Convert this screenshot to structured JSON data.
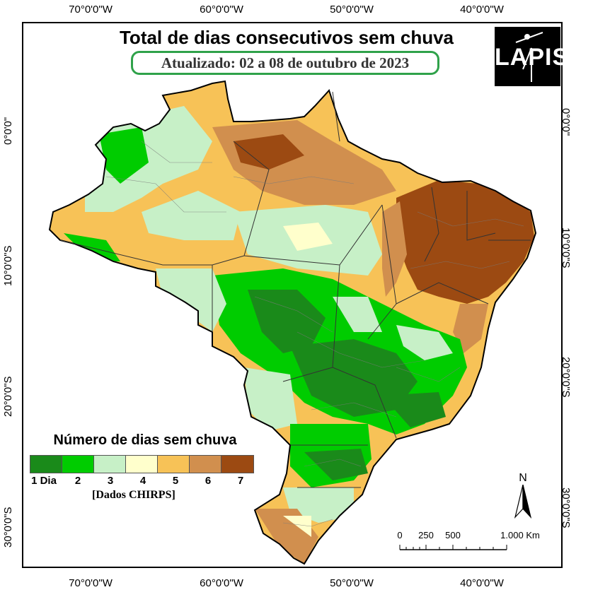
{
  "title": "Total de dias consecutivos sem chuva",
  "subtitle": "Atualizado: 02 a 08 de outubro de 2023",
  "logo": {
    "text": "LAPIS"
  },
  "axes": {
    "longitude_labels": [
      "70°0'0\"W",
      "60°0'0\"W",
      "50°0'0\"W",
      "40°0'0\"W"
    ],
    "latitude_labels": [
      "0°0'0\"",
      "10°0'0\"S",
      "20°0'0\"S",
      "30°0'0\"S"
    ]
  },
  "legend": {
    "title": "Número de dias sem chuva",
    "classes": [
      {
        "label": "1 Dia",
        "color": "#1a8a1a"
      },
      {
        "label": "2",
        "color": "#00cc00"
      },
      {
        "label": "3",
        "color": "#c7f0c7"
      },
      {
        "label": "4",
        "color": "#ffffcc"
      },
      {
        "label": "5",
        "color": "#f7c257"
      },
      {
        "label": "6",
        "color": "#d18f4e"
      },
      {
        "label": "7",
        "color": "#9c4a12"
      }
    ],
    "source": "[Dados CHIRPS]"
  },
  "north_arrow": {
    "label": "N"
  },
  "scale_bar": {
    "labels": [
      "0",
      "250",
      "500",
      "1.000 Km"
    ]
  }
}
